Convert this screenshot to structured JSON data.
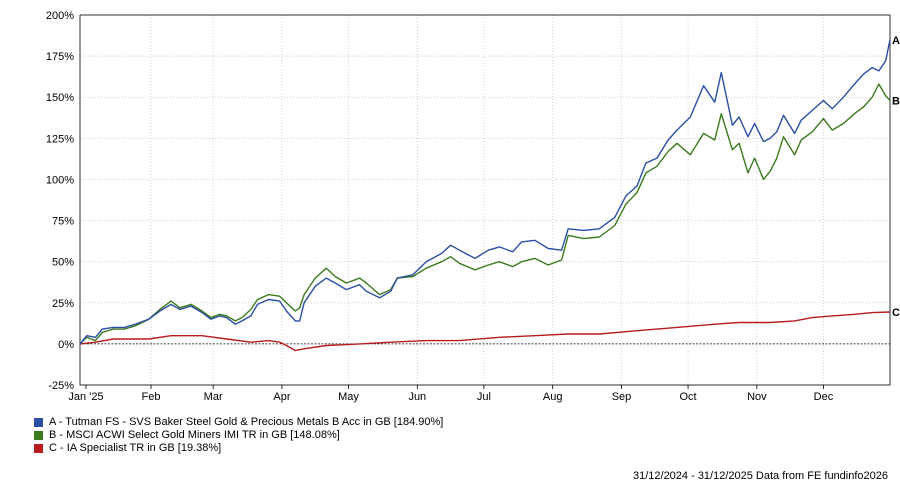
{
  "chart_data": {
    "type": "line",
    "x_range": [
      "31/12/2024",
      "31/12/2025"
    ],
    "ylim": [
      -25,
      200
    ],
    "y_ticks": [
      -25,
      0,
      25,
      50,
      75,
      100,
      125,
      150,
      175,
      200
    ],
    "y_tick_labels": [
      "-25%",
      "0%",
      "25%",
      "50%",
      "75%",
      "100%",
      "125%",
      "150%",
      "175%",
      "200%"
    ],
    "x_tick_labels": [
      "Jan '25",
      "Feb",
      "Mar",
      "Apr",
      "May",
      "Jun",
      "Jul",
      "Aug",
      "Sep",
      "Oct",
      "Nov",
      "Dec"
    ],
    "grid": true,
    "series": [
      {
        "name": "A - Tutman FS - SVS Baker Steel Gold & Precious Metals B Acc in GB [184.90%]",
        "end_label": "A",
        "color": "#2b4fa5",
        "points": [
          [
            "2024-12-31",
            0
          ],
          [
            "2025-01-03",
            5
          ],
          [
            "2025-01-07",
            4
          ],
          [
            "2025-01-10",
            9
          ],
          [
            "2025-01-15",
            10
          ],
          [
            "2025-01-20",
            10
          ],
          [
            "2025-01-25",
            12
          ],
          [
            "2025-01-31",
            15
          ],
          [
            "2025-02-05",
            20
          ],
          [
            "2025-02-10",
            24
          ],
          [
            "2025-02-14",
            21
          ],
          [
            "2025-02-19",
            23
          ],
          [
            "2025-02-24",
            19
          ],
          [
            "2025-02-28",
            15
          ],
          [
            "2025-03-04",
            17
          ],
          [
            "2025-03-07",
            16
          ],
          [
            "2025-03-11",
            12
          ],
          [
            "2025-03-14",
            14
          ],
          [
            "2025-03-18",
            17
          ],
          [
            "2025-03-21",
            24
          ],
          [
            "2025-03-26",
            27
          ],
          [
            "2025-03-31",
            26
          ],
          [
            "2025-04-03",
            20
          ],
          [
            "2025-04-07",
            14
          ],
          [
            "2025-04-09",
            14
          ],
          [
            "2025-04-11",
            25
          ],
          [
            "2025-04-16",
            35
          ],
          [
            "2025-04-21",
            40
          ],
          [
            "2025-04-25",
            37
          ],
          [
            "2025-04-30",
            33
          ],
          [
            "2025-05-06",
            36
          ],
          [
            "2025-05-09",
            32
          ],
          [
            "2025-05-15",
            28
          ],
          [
            "2025-05-20",
            32
          ],
          [
            "2025-05-23",
            40
          ],
          [
            "2025-05-30",
            42
          ],
          [
            "2025-06-05",
            50
          ],
          [
            "2025-06-12",
            55
          ],
          [
            "2025-06-16",
            60
          ],
          [
            "2025-06-20",
            57
          ],
          [
            "2025-06-27",
            52
          ],
          [
            "2025-07-03",
            57
          ],
          [
            "2025-07-08",
            59
          ],
          [
            "2025-07-14",
            56
          ],
          [
            "2025-07-18",
            62
          ],
          [
            "2025-07-24",
            63
          ],
          [
            "2025-07-30",
            58
          ],
          [
            "2025-08-05",
            57
          ],
          [
            "2025-08-08",
            70
          ],
          [
            "2025-08-15",
            69
          ],
          [
            "2025-08-22",
            70
          ],
          [
            "2025-08-29",
            77
          ],
          [
            "2025-09-03",
            90
          ],
          [
            "2025-09-08",
            96
          ],
          [
            "2025-09-12",
            110
          ],
          [
            "2025-09-17",
            113
          ],
          [
            "2025-09-22",
            124
          ],
          [
            "2025-09-26",
            130
          ],
          [
            "2025-10-02",
            138
          ],
          [
            "2025-10-08",
            157
          ],
          [
            "2025-10-13",
            147
          ],
          [
            "2025-10-16",
            165
          ],
          [
            "2025-10-21",
            133
          ],
          [
            "2025-10-24",
            138
          ],
          [
            "2025-10-28",
            126
          ],
          [
            "2025-10-31",
            134
          ],
          [
            "2025-11-04",
            123
          ],
          [
            "2025-11-07",
            125
          ],
          [
            "2025-11-10",
            129
          ],
          [
            "2025-11-13",
            139
          ],
          [
            "2025-11-18",
            128
          ],
          [
            "2025-11-21",
            136
          ],
          [
            "2025-11-26",
            142
          ],
          [
            "2025-12-01",
            148
          ],
          [
            "2025-12-05",
            143
          ],
          [
            "2025-12-10",
            150
          ],
          [
            "2025-12-15",
            158
          ],
          [
            "2025-12-19",
            164
          ],
          [
            "2025-12-23",
            168
          ],
          [
            "2025-12-26",
            166
          ],
          [
            "2025-12-29",
            172
          ],
          [
            "2025-12-31",
            184.9
          ]
        ]
      },
      {
        "name": "B - MSCI ACWI Select Gold Miners IMI TR in GB [148.08%]",
        "end_label": "B",
        "color": "#3b7a1e",
        "points": [
          [
            "2024-12-31",
            0
          ],
          [
            "2025-01-03",
            4
          ],
          [
            "2025-01-07",
            2
          ],
          [
            "2025-01-10",
            7
          ],
          [
            "2025-01-15",
            9
          ],
          [
            "2025-01-20",
            9
          ],
          [
            "2025-01-25",
            11
          ],
          [
            "2025-01-31",
            15
          ],
          [
            "2025-02-05",
            21
          ],
          [
            "2025-02-10",
            26
          ],
          [
            "2025-02-14",
            22
          ],
          [
            "2025-02-19",
            24
          ],
          [
            "2025-02-24",
            20
          ],
          [
            "2025-02-28",
            16
          ],
          [
            "2025-03-04",
            18
          ],
          [
            "2025-03-07",
            17
          ],
          [
            "2025-03-11",
            14
          ],
          [
            "2025-03-14",
            16
          ],
          [
            "2025-03-18",
            21
          ],
          [
            "2025-03-21",
            27
          ],
          [
            "2025-03-26",
            30
          ],
          [
            "2025-03-31",
            29
          ],
          [
            "2025-04-03",
            25
          ],
          [
            "2025-04-07",
            20
          ],
          [
            "2025-04-09",
            22
          ],
          [
            "2025-04-11",
            30
          ],
          [
            "2025-04-16",
            40
          ],
          [
            "2025-04-21",
            46
          ],
          [
            "2025-04-25",
            41
          ],
          [
            "2025-04-30",
            37
          ],
          [
            "2025-05-06",
            40
          ],
          [
            "2025-05-09",
            37
          ],
          [
            "2025-05-15",
            30
          ],
          [
            "2025-05-20",
            33
          ],
          [
            "2025-05-23",
            40
          ],
          [
            "2025-05-30",
            41
          ],
          [
            "2025-06-05",
            46
          ],
          [
            "2025-06-12",
            50
          ],
          [
            "2025-06-16",
            53
          ],
          [
            "2025-06-20",
            49
          ],
          [
            "2025-06-27",
            45
          ],
          [
            "2025-07-03",
            48
          ],
          [
            "2025-07-08",
            50
          ],
          [
            "2025-07-14",
            47
          ],
          [
            "2025-07-18",
            50
          ],
          [
            "2025-07-24",
            52
          ],
          [
            "2025-07-30",
            48
          ],
          [
            "2025-08-05",
            51
          ],
          [
            "2025-08-08",
            66
          ],
          [
            "2025-08-15",
            64
          ],
          [
            "2025-08-22",
            65
          ],
          [
            "2025-08-29",
            72
          ],
          [
            "2025-09-03",
            85
          ],
          [
            "2025-09-08",
            92
          ],
          [
            "2025-09-12",
            104
          ],
          [
            "2025-09-17",
            108
          ],
          [
            "2025-09-22",
            117
          ],
          [
            "2025-09-26",
            122
          ],
          [
            "2025-10-02",
            115
          ],
          [
            "2025-10-08",
            128
          ],
          [
            "2025-10-13",
            124
          ],
          [
            "2025-10-16",
            140
          ],
          [
            "2025-10-21",
            118
          ],
          [
            "2025-10-24",
            122
          ],
          [
            "2025-10-28",
            104
          ],
          [
            "2025-10-31",
            113
          ],
          [
            "2025-11-04",
            100
          ],
          [
            "2025-11-07",
            105
          ],
          [
            "2025-11-10",
            113
          ],
          [
            "2025-11-13",
            126
          ],
          [
            "2025-11-18",
            115
          ],
          [
            "2025-11-21",
            124
          ],
          [
            "2025-11-26",
            129
          ],
          [
            "2025-12-01",
            137
          ],
          [
            "2025-12-05",
            130
          ],
          [
            "2025-12-10",
            134
          ],
          [
            "2025-12-15",
            140
          ],
          [
            "2025-12-19",
            144
          ],
          [
            "2025-12-23",
            150
          ],
          [
            "2025-12-26",
            158
          ],
          [
            "2025-12-29",
            151
          ],
          [
            "2025-12-31",
            148.08
          ]
        ]
      },
      {
        "name": "C - IA Specialist TR in GB [19.38%]",
        "end_label": "C",
        "color": "#b81c1c",
        "points": [
          [
            "2024-12-31",
            0
          ],
          [
            "2025-01-07",
            1
          ],
          [
            "2025-01-15",
            3
          ],
          [
            "2025-01-31",
            3
          ],
          [
            "2025-02-10",
            5
          ],
          [
            "2025-02-24",
            5
          ],
          [
            "2025-03-07",
            3
          ],
          [
            "2025-03-18",
            1
          ],
          [
            "2025-03-26",
            2
          ],
          [
            "2025-03-31",
            1
          ],
          [
            "2025-04-03",
            -1
          ],
          [
            "2025-04-07",
            -4
          ],
          [
            "2025-04-11",
            -3
          ],
          [
            "2025-04-21",
            -1
          ],
          [
            "2025-05-06",
            0
          ],
          [
            "2025-05-20",
            1
          ],
          [
            "2025-06-05",
            2
          ],
          [
            "2025-06-20",
            2
          ],
          [
            "2025-07-08",
            4
          ],
          [
            "2025-07-24",
            5
          ],
          [
            "2025-08-08",
            6
          ],
          [
            "2025-08-22",
            6
          ],
          [
            "2025-09-08",
            8
          ],
          [
            "2025-09-26",
            10
          ],
          [
            "2025-10-13",
            12
          ],
          [
            "2025-10-24",
            13
          ],
          [
            "2025-11-07",
            13
          ],
          [
            "2025-11-18",
            14
          ],
          [
            "2025-11-26",
            16
          ],
          [
            "2025-12-05",
            17
          ],
          [
            "2025-12-15",
            18
          ],
          [
            "2025-12-23",
            19
          ],
          [
            "2025-12-31",
            19.38
          ]
        ]
      }
    ]
  },
  "footer": {
    "text": "31/12/2024 - 31/12/2025 Data from FE fundinfo2026"
  }
}
